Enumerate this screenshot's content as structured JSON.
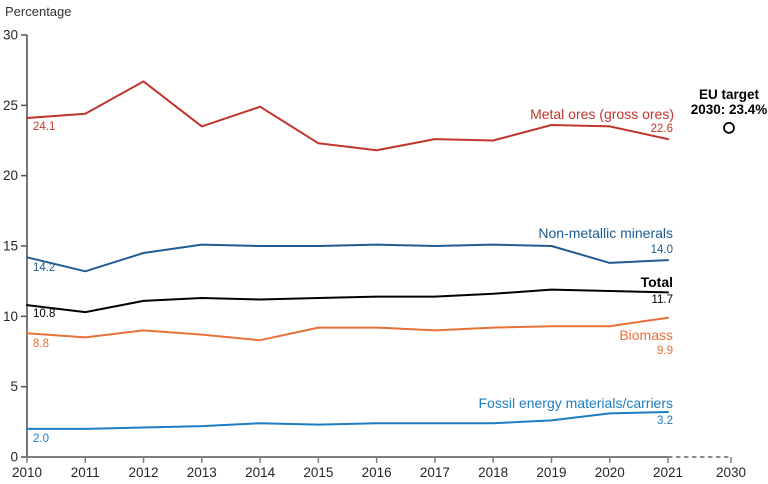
{
  "chart_data": {
    "type": "line",
    "title": "",
    "ylabel": "Percentage",
    "xlabel": "",
    "grid": false,
    "legend_position": "inline-right",
    "ylim": [
      0,
      30
    ],
    "yticks": [
      0,
      5,
      10,
      15,
      20,
      25,
      30
    ],
    "x": [
      2010,
      2011,
      2012,
      2013,
      2014,
      2015,
      2016,
      2017,
      2018,
      2019,
      2020,
      2021
    ],
    "x_tick_labels": [
      "2010",
      "2011",
      "2012",
      "2013",
      "2014",
      "2015",
      "2016",
      "2017",
      "2018",
      "2019",
      "2020",
      "2021"
    ],
    "extra_x_tick_label": "2030",
    "axis_note": "axis dashed between 2021 and 2030",
    "axis_colors": {
      "y_axis": "#555555",
      "x_axis": "#7f7f7f",
      "dashed_segment": "#8c8c8c",
      "tick_label": "#262626"
    },
    "series": [
      {
        "name": "Metal ores (gross ores)",
        "color": "#c0352c",
        "values": [
          24.1,
          24.4,
          26.7,
          23.5,
          24.9,
          22.3,
          21.8,
          22.6,
          22.5,
          23.6,
          23.5,
          22.6
        ],
        "first_label": "24.1",
        "last_label": "22.6",
        "bold": false
      },
      {
        "name": "Non-metallic minerals",
        "color": "#1f5c91",
        "values": [
          14.2,
          13.2,
          14.5,
          15.1,
          15.0,
          15.0,
          15.1,
          15.0,
          15.1,
          15.0,
          13.8,
          14.0
        ],
        "first_label": "14.2",
        "last_label": "14.0",
        "bold": false
      },
      {
        "name": "Total",
        "color": "#000000",
        "values": [
          10.8,
          10.3,
          11.1,
          11.3,
          11.2,
          11.3,
          11.4,
          11.4,
          11.6,
          11.9,
          11.8,
          11.7
        ],
        "first_label": "10.8",
        "last_label": "11.7",
        "bold": true
      },
      {
        "name": "Biomass",
        "color": "#e8703a",
        "values": [
          8.8,
          8.5,
          9.0,
          8.7,
          8.3,
          9.2,
          9.2,
          9.0,
          9.2,
          9.3,
          9.3,
          9.9
        ],
        "first_label": "8.8",
        "last_label": "9.9",
        "bold": false
      },
      {
        "name": "Fossil energy materials/carriers",
        "color": "#1d7cc2",
        "values": [
          2.0,
          2.0,
          2.1,
          2.2,
          2.4,
          2.3,
          2.4,
          2.4,
          2.4,
          2.6,
          3.1,
          3.2
        ],
        "first_label": "2.0",
        "last_label": "3.2",
        "bold": false
      }
    ],
    "target": {
      "line1": "EU target",
      "line2": "2030: 23.4%",
      "value": 23.4,
      "year": "2030",
      "marker": "open-circle",
      "color": "#000000"
    }
  }
}
